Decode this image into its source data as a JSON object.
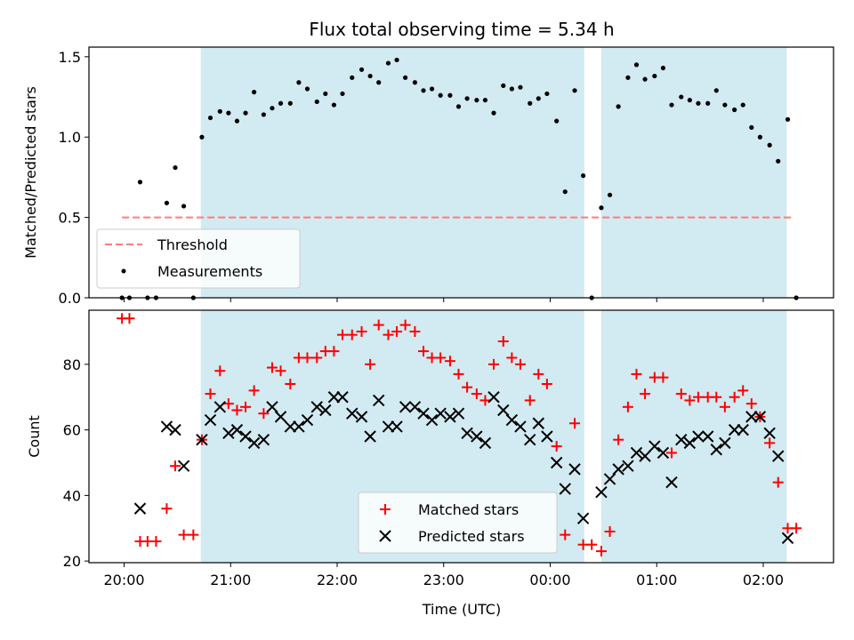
{
  "figure": {
    "title": "Flux total observing time = 5.34 h",
    "xlabel": "Time (UTC)",
    "x_tick_labels": [
      "20:00",
      "21:00",
      "22:00",
      "23:00",
      "00:00",
      "01:00",
      "02:00"
    ],
    "x_tick_hours": [
      20,
      21,
      22,
      23,
      24,
      25,
      26
    ],
    "x_range": [
      19.67,
      26.66
    ],
    "shaded_regions": [
      [
        20.72,
        24.32
      ],
      [
        24.48,
        26.22
      ]
    ],
    "shade_color": "#add8e6"
  },
  "chart_data": [
    {
      "type": "scatter",
      "ylabel": "Matched/Predicted stars",
      "ylim": [
        0,
        1.56
      ],
      "y_ticks": [
        0.0,
        0.5,
        1.0,
        1.5
      ],
      "y_tick_labels": [
        "0.0",
        "0.5",
        "1.0",
        "1.5"
      ],
      "threshold": {
        "name": "Threshold",
        "value": 0.5,
        "x_range": [
          19.98,
          26.28
        ],
        "color": "#ff7b7b"
      },
      "legend": {
        "placement": "lower-left",
        "entries": [
          "Threshold",
          "Measurements"
        ]
      },
      "series": [
        {
          "name": "Measurements",
          "color": "#000000",
          "x": [
            19.98,
            20.05,
            20.15,
            20.22,
            20.3,
            20.4,
            20.48,
            20.56,
            20.65,
            20.73,
            20.81,
            20.9,
            20.98,
            21.06,
            21.14,
            21.22,
            21.31,
            21.39,
            21.47,
            21.56,
            21.64,
            21.72,
            21.81,
            21.89,
            21.97,
            22.05,
            22.14,
            22.23,
            22.31,
            22.39,
            22.48,
            22.56,
            22.64,
            22.73,
            22.81,
            22.89,
            22.97,
            23.06,
            23.14,
            23.22,
            23.31,
            23.39,
            23.47,
            23.56,
            23.64,
            23.72,
            23.81,
            23.89,
            23.97,
            24.06,
            24.14,
            24.23,
            24.31,
            24.39,
            24.48,
            24.56,
            24.64,
            24.73,
            24.81,
            24.89,
            24.98,
            25.06,
            25.14,
            25.23,
            25.31,
            25.39,
            25.48,
            25.56,
            25.64,
            25.73,
            25.81,
            25.89,
            25.97,
            26.06,
            26.14,
            26.23,
            26.31
          ],
          "y": [
            0.0,
            0.0,
            0.72,
            0.0,
            0.0,
            0.59,
            0.81,
            0.57,
            0.0,
            1.0,
            1.12,
            1.16,
            1.15,
            1.1,
            1.15,
            1.28,
            1.14,
            1.18,
            1.21,
            1.21,
            1.34,
            1.3,
            1.22,
            1.27,
            1.2,
            1.27,
            1.37,
            1.42,
            1.38,
            1.34,
            1.46,
            1.48,
            1.37,
            1.34,
            1.29,
            1.3,
            1.26,
            1.26,
            1.19,
            1.24,
            1.23,
            1.23,
            1.15,
            1.32,
            1.3,
            1.31,
            1.21,
            1.24,
            1.27,
            1.1,
            0.66,
            1.29,
            0.76,
            0.0,
            0.56,
            0.64,
            1.19,
            1.37,
            1.45,
            1.36,
            1.38,
            1.43,
            1.2,
            1.25,
            1.23,
            1.21,
            1.21,
            1.29,
            1.2,
            1.17,
            1.2,
            1.06,
            1.0,
            0.95,
            0.85,
            1.11,
            0.0
          ]
        }
      ]
    },
    {
      "type": "scatter",
      "ylabel": "Count",
      "ylim": [
        19.5,
        96.5
      ],
      "y_ticks": [
        20,
        40,
        60,
        80
      ],
      "y_tick_labels": [
        "20",
        "40",
        "60",
        "80"
      ],
      "legend": {
        "placement": "lower-center",
        "entries": [
          "Matched stars",
          "Predicted stars"
        ]
      },
      "series": [
        {
          "name": "Matched stars",
          "marker": "plus",
          "color": "#ff0000",
          "x": [
            19.98,
            20.05,
            20.15,
            20.22,
            20.3,
            20.4,
            20.48,
            20.56,
            20.65,
            20.73,
            20.81,
            20.9,
            20.98,
            21.06,
            21.14,
            21.22,
            21.31,
            21.39,
            21.47,
            21.56,
            21.64,
            21.72,
            21.81,
            21.89,
            21.97,
            22.05,
            22.14,
            22.23,
            22.31,
            22.39,
            22.48,
            22.56,
            22.64,
            22.73,
            22.81,
            22.89,
            22.97,
            23.06,
            23.14,
            23.22,
            23.31,
            23.39,
            23.47,
            23.56,
            23.64,
            23.72,
            23.81,
            23.89,
            23.97,
            24.06,
            24.14,
            24.23,
            24.31,
            24.39,
            24.48,
            24.56,
            24.64,
            24.73,
            24.81,
            24.89,
            24.98,
            25.06,
            25.14,
            25.23,
            25.31,
            25.39,
            25.48,
            25.56,
            25.64,
            25.73,
            25.81,
            25.89,
            25.97,
            26.06,
            26.14,
            26.23,
            26.31
          ],
          "y": [
            94,
            94,
            26,
            26,
            26,
            36,
            49,
            28,
            28,
            57,
            71,
            78,
            68,
            66,
            67,
            72,
            65,
            79,
            78,
            74,
            82,
            82,
            82,
            84,
            84,
            89,
            89,
            90,
            80,
            92,
            89,
            90,
            92,
            90,
            84,
            82,
            82,
            81,
            77,
            73,
            71,
            69,
            80,
            87,
            82,
            80,
            69,
            77,
            74,
            55,
            28,
            62,
            25,
            25,
            23,
            29,
            57,
            67,
            77,
            71,
            76,
            76,
            53,
            71,
            69,
            70,
            70,
            70,
            67,
            70,
            72,
            68,
            64,
            56,
            44,
            30,
            30
          ]
        },
        {
          "name": "Predicted stars",
          "marker": "x",
          "color": "#000000",
          "x": [
            20.15,
            20.4,
            20.48,
            20.56,
            20.73,
            20.81,
            20.9,
            20.98,
            21.06,
            21.14,
            21.22,
            21.31,
            21.39,
            21.47,
            21.56,
            21.64,
            21.72,
            21.81,
            21.89,
            21.97,
            22.05,
            22.14,
            22.23,
            22.31,
            22.39,
            22.48,
            22.56,
            22.64,
            22.73,
            22.81,
            22.89,
            22.97,
            23.06,
            23.14,
            23.22,
            23.31,
            23.39,
            23.47,
            23.56,
            23.64,
            23.72,
            23.81,
            23.89,
            23.97,
            24.06,
            24.14,
            24.23,
            24.31,
            24.48,
            24.56,
            24.64,
            24.73,
            24.81,
            24.89,
            24.98,
            25.06,
            25.14,
            25.23,
            25.31,
            25.39,
            25.48,
            25.56,
            25.64,
            25.73,
            25.81,
            25.89,
            25.97,
            26.06,
            26.14,
            26.23
          ],
          "y": [
            36,
            61,
            60,
            49,
            57,
            63,
            67,
            59,
            60,
            58,
            56,
            57,
            67,
            64,
            61,
            61,
            63,
            67,
            66,
            70,
            70,
            65,
            64,
            58,
            69,
            61,
            61,
            67,
            67,
            65,
            63,
            65,
            64,
            65,
            59,
            58,
            56,
            70,
            66,
            63,
            61,
            57,
            62,
            58,
            50,
            42,
            48,
            33,
            41,
            45,
            48,
            49,
            53,
            52,
            55,
            53,
            44,
            57,
            56,
            58,
            58,
            54,
            56,
            60,
            60,
            64,
            64,
            59,
            52,
            27
          ]
        }
      ]
    }
  ]
}
